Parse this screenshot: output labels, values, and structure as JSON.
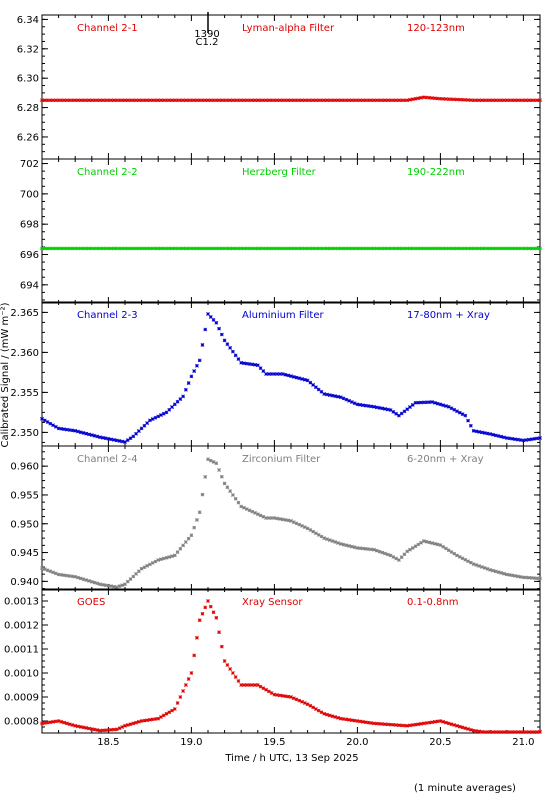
{
  "ylabel": "Calibrated Signal / (mW m⁻²)",
  "xlabel": "Time / h UTC, 13 Sep 2025",
  "footnote": "(1 minute averages)",
  "xrange": [
    18.1,
    21.1
  ],
  "xticks": [
    "18.5",
    "19.0",
    "19.5",
    "20.0",
    "20.5",
    "21.0"
  ],
  "xtick_values": [
    18.5,
    19.0,
    19.5,
    20.0,
    20.5,
    21.0
  ],
  "flare_marker": {
    "time": 19.1,
    "line1": "1390",
    "line2": "C1.2"
  },
  "chart_data": [
    {
      "type": "scatter",
      "channel": "Channel 2-1",
      "filter": "Lyman-alpha Filter",
      "band": "120-123nm",
      "color": "#e00000",
      "ylim": [
        6.245,
        6.343
      ],
      "yticks": [
        6.26,
        6.28,
        6.3,
        6.32,
        6.34
      ],
      "ytick_labels": [
        "6.26",
        "6.28",
        "6.30",
        "6.32",
        "6.34"
      ],
      "x": [
        18.1,
        19.0,
        19.5,
        20.0,
        20.3,
        20.4,
        20.5,
        20.7,
        21.1
      ],
      "y": [
        6.285,
        6.285,
        6.285,
        6.285,
        6.285,
        6.287,
        6.286,
        6.285,
        6.285
      ]
    },
    {
      "type": "scatter",
      "channel": "Channel 2-2",
      "filter": "Herzberg Filter",
      "band": "190-222nm",
      "color": "#00d000",
      "ylim": [
        692.8,
        702.3
      ],
      "yticks": [
        694,
        696,
        698,
        700,
        702
      ],
      "ytick_labels": [
        "694",
        "696",
        "698",
        "700",
        "702"
      ],
      "x": [
        18.1,
        19.0,
        20.0,
        21.1
      ],
      "y": [
        696.4,
        696.4,
        696.4,
        696.4
      ]
    },
    {
      "type": "scatter",
      "channel": "Channel 2-3",
      "filter": "Aluminium Filter",
      "band": "17-80nm + Xray",
      "color": "#0000d0",
      "ylim": [
        2.3483,
        2.3663
      ],
      "yticks": [
        2.35,
        2.355,
        2.36,
        2.365
      ],
      "ytick_labels": [
        "2.350",
        "2.355",
        "2.360",
        "2.365"
      ],
      "x": [
        18.1,
        18.2,
        18.3,
        18.45,
        18.55,
        18.6,
        18.65,
        18.75,
        18.85,
        18.95,
        19.0,
        19.05,
        19.1,
        19.15,
        19.2,
        19.3,
        19.4,
        19.45,
        19.55,
        19.7,
        19.8,
        19.9,
        20.0,
        20.1,
        20.2,
        20.25,
        20.3,
        20.35,
        20.45,
        20.55,
        20.65,
        20.7,
        20.8,
        20.9,
        21.0,
        21.1
      ],
      "y": [
        2.3517,
        2.3505,
        2.3502,
        2.3494,
        2.349,
        2.3488,
        2.3495,
        2.3515,
        2.3525,
        2.3545,
        2.357,
        2.359,
        2.3648,
        2.3637,
        2.3615,
        2.3587,
        2.3584,
        2.3573,
        2.3573,
        2.3565,
        2.3548,
        2.3544,
        2.3535,
        2.3532,
        2.3528,
        2.3521,
        2.3529,
        2.3537,
        2.3538,
        2.3532,
        2.3521,
        2.3502,
        2.3498,
        2.3493,
        2.349,
        2.3493
      ]
    },
    {
      "type": "scatter",
      "channel": "Channel 2-4",
      "filter": "Zirconium Filter",
      "band": "6-20nm + Xray",
      "color": "#808080",
      "ylim": [
        0.9385,
        0.9635
      ],
      "yticks": [
        0.94,
        0.945,
        0.95,
        0.955,
        0.96
      ],
      "ytick_labels": [
        "0.940",
        "0.945",
        "0.950",
        "0.955",
        "0.960"
      ],
      "x": [
        18.1,
        18.2,
        18.3,
        18.45,
        18.55,
        18.6,
        18.7,
        18.8,
        18.9,
        19.0,
        19.05,
        19.1,
        19.15,
        19.2,
        19.3,
        19.45,
        19.5,
        19.6,
        19.7,
        19.8,
        19.9,
        20.0,
        20.1,
        20.2,
        20.25,
        20.3,
        20.4,
        20.5,
        20.6,
        20.7,
        20.8,
        20.9,
        21.0,
        21.1
      ],
      "y": [
        0.9423,
        0.9412,
        0.9408,
        0.9395,
        0.939,
        0.9395,
        0.9422,
        0.9437,
        0.9445,
        0.948,
        0.952,
        0.9612,
        0.9605,
        0.957,
        0.953,
        0.951,
        0.951,
        0.9505,
        0.9492,
        0.9475,
        0.9465,
        0.9458,
        0.9455,
        0.9445,
        0.9437,
        0.9452,
        0.947,
        0.9463,
        0.9445,
        0.943,
        0.942,
        0.9412,
        0.9407,
        0.9405
      ]
    },
    {
      "type": "scatter",
      "channel": "GOES",
      "filter": "Xray Sensor",
      "band": "0.1-0.8nm",
      "color": "#e00000",
      "ylim": [
        0.00075,
        0.00135
      ],
      "yticks": [
        0.0008,
        0.0009,
        0.001,
        0.0011,
        0.0012,
        0.0013
      ],
      "ytick_labels": [
        "0.0008",
        "0.0009",
        "0.0010",
        "0.0011",
        "0.0012",
        "0.0013"
      ],
      "x": [
        18.1,
        18.2,
        18.3,
        18.45,
        18.55,
        18.6,
        18.7,
        18.8,
        18.9,
        19.0,
        19.05,
        19.1,
        19.15,
        19.2,
        19.3,
        19.4,
        19.5,
        19.6,
        19.7,
        19.8,
        19.9,
        20.0,
        20.1,
        20.2,
        20.3,
        20.4,
        20.5,
        20.6,
        20.7,
        20.8,
        20.9,
        21.0,
        21.1
      ],
      "y": [
        0.00079,
        0.0008,
        0.00078,
        0.00076,
        0.000765,
        0.00078,
        0.0008,
        0.00081,
        0.00085,
        0.001,
        0.00122,
        0.0013,
        0.00123,
        0.00105,
        0.00095,
        0.00095,
        0.00091,
        0.0009,
        0.00087,
        0.00083,
        0.00081,
        0.0008,
        0.00079,
        0.000785,
        0.00078,
        0.00079,
        0.0008,
        0.00078,
        0.00076,
        0.00075,
        0.000745,
        0.00074,
        0.000755
      ]
    }
  ]
}
